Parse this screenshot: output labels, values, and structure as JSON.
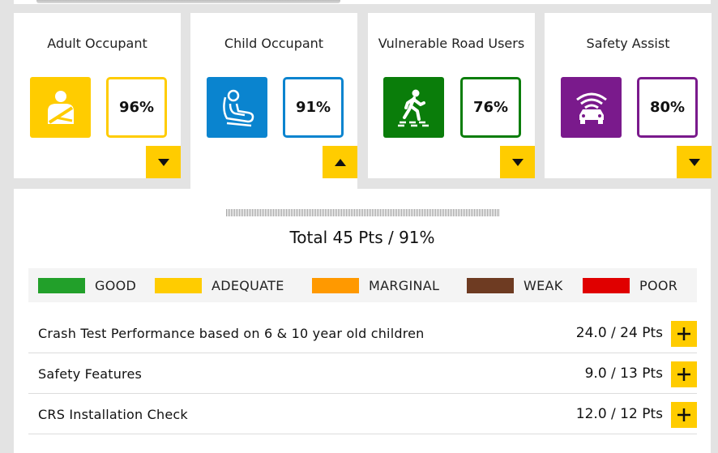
{
  "categories": [
    {
      "title": "Adult Occupant",
      "score": "96%",
      "color": "#ffcc00",
      "icon": "seatbelt-adult-icon",
      "expanded": false
    },
    {
      "title": "Child Occupant",
      "score": "91%",
      "color": "#0a84cf",
      "icon": "child-seat-icon",
      "expanded": true
    },
    {
      "title": "Vulnerable Road Users",
      "score": "76%",
      "color": "#0a7d0a",
      "icon": "pedestrian-crossing-icon",
      "expanded": false
    },
    {
      "title": "Safety Assist",
      "score": "80%",
      "color": "#7a1a8c",
      "icon": "car-sensor-icon",
      "expanded": false
    }
  ],
  "summary": {
    "total": "Total 45 Pts / 91%"
  },
  "legend": [
    {
      "label": "GOOD",
      "color": "#22a02a"
    },
    {
      "label": "ADEQUATE",
      "color": "#ffcc00"
    },
    {
      "label": "MARGINAL",
      "color": "#ff9900"
    },
    {
      "label": "WEAK",
      "color": "#6e3b22"
    },
    {
      "label": "POOR",
      "color": "#e00000"
    }
  ],
  "rows": [
    {
      "label": "Crash Test Performance based on 6 & 10 year old children",
      "points": "24.0 / 24 Pts"
    },
    {
      "label": "Safety Features",
      "points": "9.0 / 13 Pts"
    },
    {
      "label": "CRS Installation Check",
      "points": "12.0 / 12 Pts"
    }
  ]
}
